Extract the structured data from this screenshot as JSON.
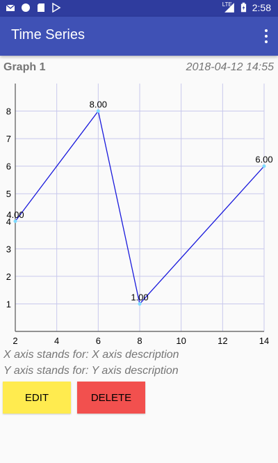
{
  "status_bar": {
    "time": "2:58",
    "network": "LTE",
    "icons": [
      "mail-icon",
      "circle-icon",
      "sd-card-icon",
      "play-store-icon",
      "signal-icon",
      "battery-icon"
    ]
  },
  "app_bar": {
    "title": "Time Series",
    "menu_icon": "more-vert-icon"
  },
  "graph": {
    "name": "Graph 1",
    "date": "2018-04-12 14:55"
  },
  "chart_data": {
    "type": "line",
    "x": [
      2,
      6,
      8,
      14
    ],
    "series": [
      {
        "values": [
          4,
          8,
          1,
          6
        ],
        "labels": [
          "4.00",
          "8.00",
          "1.00",
          "6.00"
        ]
      }
    ],
    "x_ticks": [
      "2",
      "4",
      "6",
      "8",
      "10",
      "12",
      "14"
    ],
    "y_ticks": [
      "1",
      "2",
      "3",
      "4",
      "5",
      "6",
      "7",
      "8"
    ],
    "xlim": [
      2,
      14
    ],
    "ylim": [
      0,
      9
    ],
    "grid": true,
    "line_color": "#1a1adc",
    "point_color": "#7fdcff",
    "grid_color": "#c8c8ec"
  },
  "descriptions": {
    "x": "X axis stands for: X axis description",
    "y": "Y axis stands for: Y axis description"
  },
  "buttons": {
    "edit": "EDIT",
    "delete": "DELETE"
  }
}
